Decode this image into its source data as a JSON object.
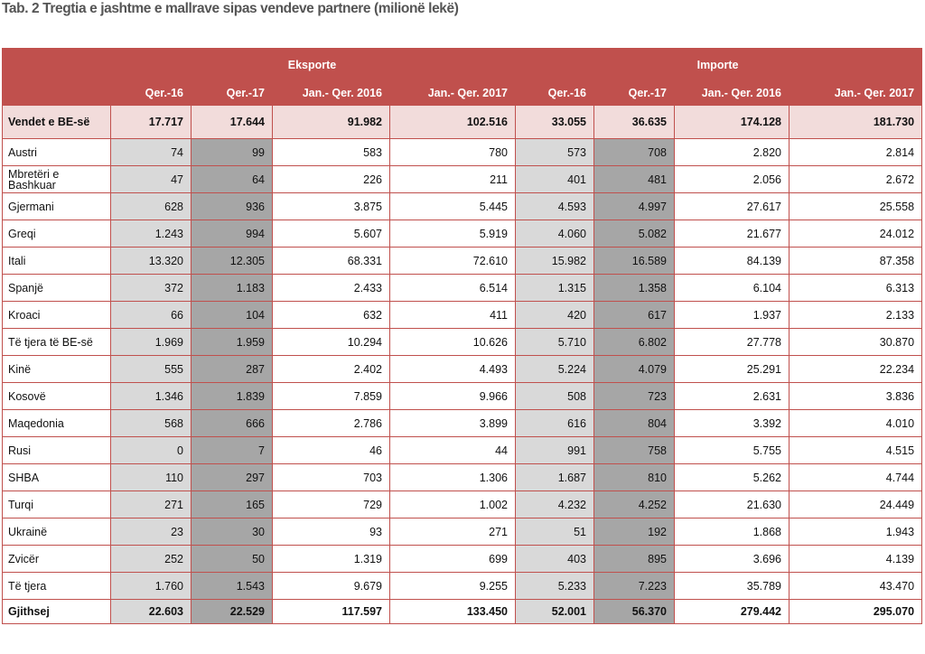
{
  "title": "Tab. 2 Tregtia e jashtme e mallrave sipas vendeve partnere (milionë lekë)",
  "groups": {
    "exports": "Eksporte",
    "imports": "Importe"
  },
  "columns": [
    "Qer.-16",
    "Qer.-17",
    "Jan.- Qer. 2016",
    "Jan.- Qer. 2017",
    "Qer.-16",
    "Qer.-17",
    "Jan.- Qer. 2016",
    "Jan.- Qer. 2017"
  ],
  "eu_row": {
    "name": "Vendet e BE-së",
    "values": [
      "17.717",
      "17.644",
      "91.982",
      "102.516",
      "33.055",
      "36.635",
      "174.128",
      "181.730"
    ]
  },
  "rows": [
    {
      "name": "Austri",
      "values": [
        "74",
        "99",
        "583",
        "780",
        "573",
        "708",
        "2.820",
        "2.814"
      ]
    },
    {
      "name": "Mbretëri e Bashkuar",
      "values": [
        "47",
        "64",
        "226",
        "211",
        "401",
        "481",
        "2.056",
        "2.672"
      ]
    },
    {
      "name": "Gjermani",
      "values": [
        "628",
        "936",
        "3.875",
        "5.445",
        "4.593",
        "4.997",
        "27.617",
        "25.558"
      ]
    },
    {
      "name": "Greqi",
      "values": [
        "1.243",
        "994",
        "5.607",
        "5.919",
        "4.060",
        "5.082",
        "21.677",
        "24.012"
      ]
    },
    {
      "name": "Itali",
      "values": [
        "13.320",
        "12.305",
        "68.331",
        "72.610",
        "15.982",
        "16.589",
        "84.139",
        "87.358"
      ]
    },
    {
      "name": "Spanjë",
      "values": [
        "372",
        "1.183",
        "2.433",
        "6.514",
        "1.315",
        "1.358",
        "6.104",
        "6.313"
      ]
    },
    {
      "name": "Kroaci",
      "values": [
        "66",
        "104",
        "632",
        "411",
        "420",
        "617",
        "1.937",
        "2.133"
      ]
    },
    {
      "name": "Të tjera të BE-së",
      "values": [
        "1.969",
        "1.959",
        "10.294",
        "10.626",
        "5.710",
        "6.802",
        "27.778",
        "30.870"
      ]
    },
    {
      "name": "Kinë",
      "values": [
        "555",
        "287",
        "2.402",
        "4.493",
        "5.224",
        "4.079",
        "25.291",
        "22.234"
      ]
    },
    {
      "name": "Kosovë",
      "values": [
        "1.346",
        "1.839",
        "7.859",
        "9.966",
        "508",
        "723",
        "2.631",
        "3.836"
      ]
    },
    {
      "name": "Maqedonia",
      "values": [
        "568",
        "666",
        "2.786",
        "3.899",
        "616",
        "804",
        "3.392",
        "4.010"
      ]
    },
    {
      "name": "Rusi",
      "values": [
        "0",
        "7",
        "46",
        "44",
        "991",
        "758",
        "5.755",
        "4.515"
      ]
    },
    {
      "name": "SHBA",
      "values": [
        "110",
        "297",
        "703",
        "1.306",
        "1.687",
        "810",
        "5.262",
        "4.744"
      ]
    },
    {
      "name": "Turqi",
      "values": [
        "271",
        "165",
        "729",
        "1.002",
        "4.232",
        "4.252",
        "21.630",
        "24.449"
      ]
    },
    {
      "name": "Ukrainë",
      "values": [
        "23",
        "30",
        "93",
        "271",
        "51",
        "192",
        "1.868",
        "1.943"
      ]
    },
    {
      "name": "Zvicër",
      "values": [
        "252",
        "50",
        "1.319",
        "699",
        "403",
        "895",
        "3.696",
        "4.139"
      ]
    },
    {
      "name": "Të tjera",
      "values": [
        "1.760",
        "1.543",
        "9.679",
        "9.255",
        "5.233",
        "7.223",
        "35.789",
        "43.470"
      ]
    }
  ],
  "total_row": {
    "name": "Gjithsej",
    "values": [
      "22.603",
      "22.529",
      "117.597",
      "133.450",
      "52.001",
      "56.370",
      "279.442",
      "295.070"
    ]
  },
  "colors": {
    "header": "#c0504d",
    "eu_row": "#f2dcdb",
    "shade_light": "#d9d9d9",
    "shade_dark": "#a6a6a6"
  }
}
